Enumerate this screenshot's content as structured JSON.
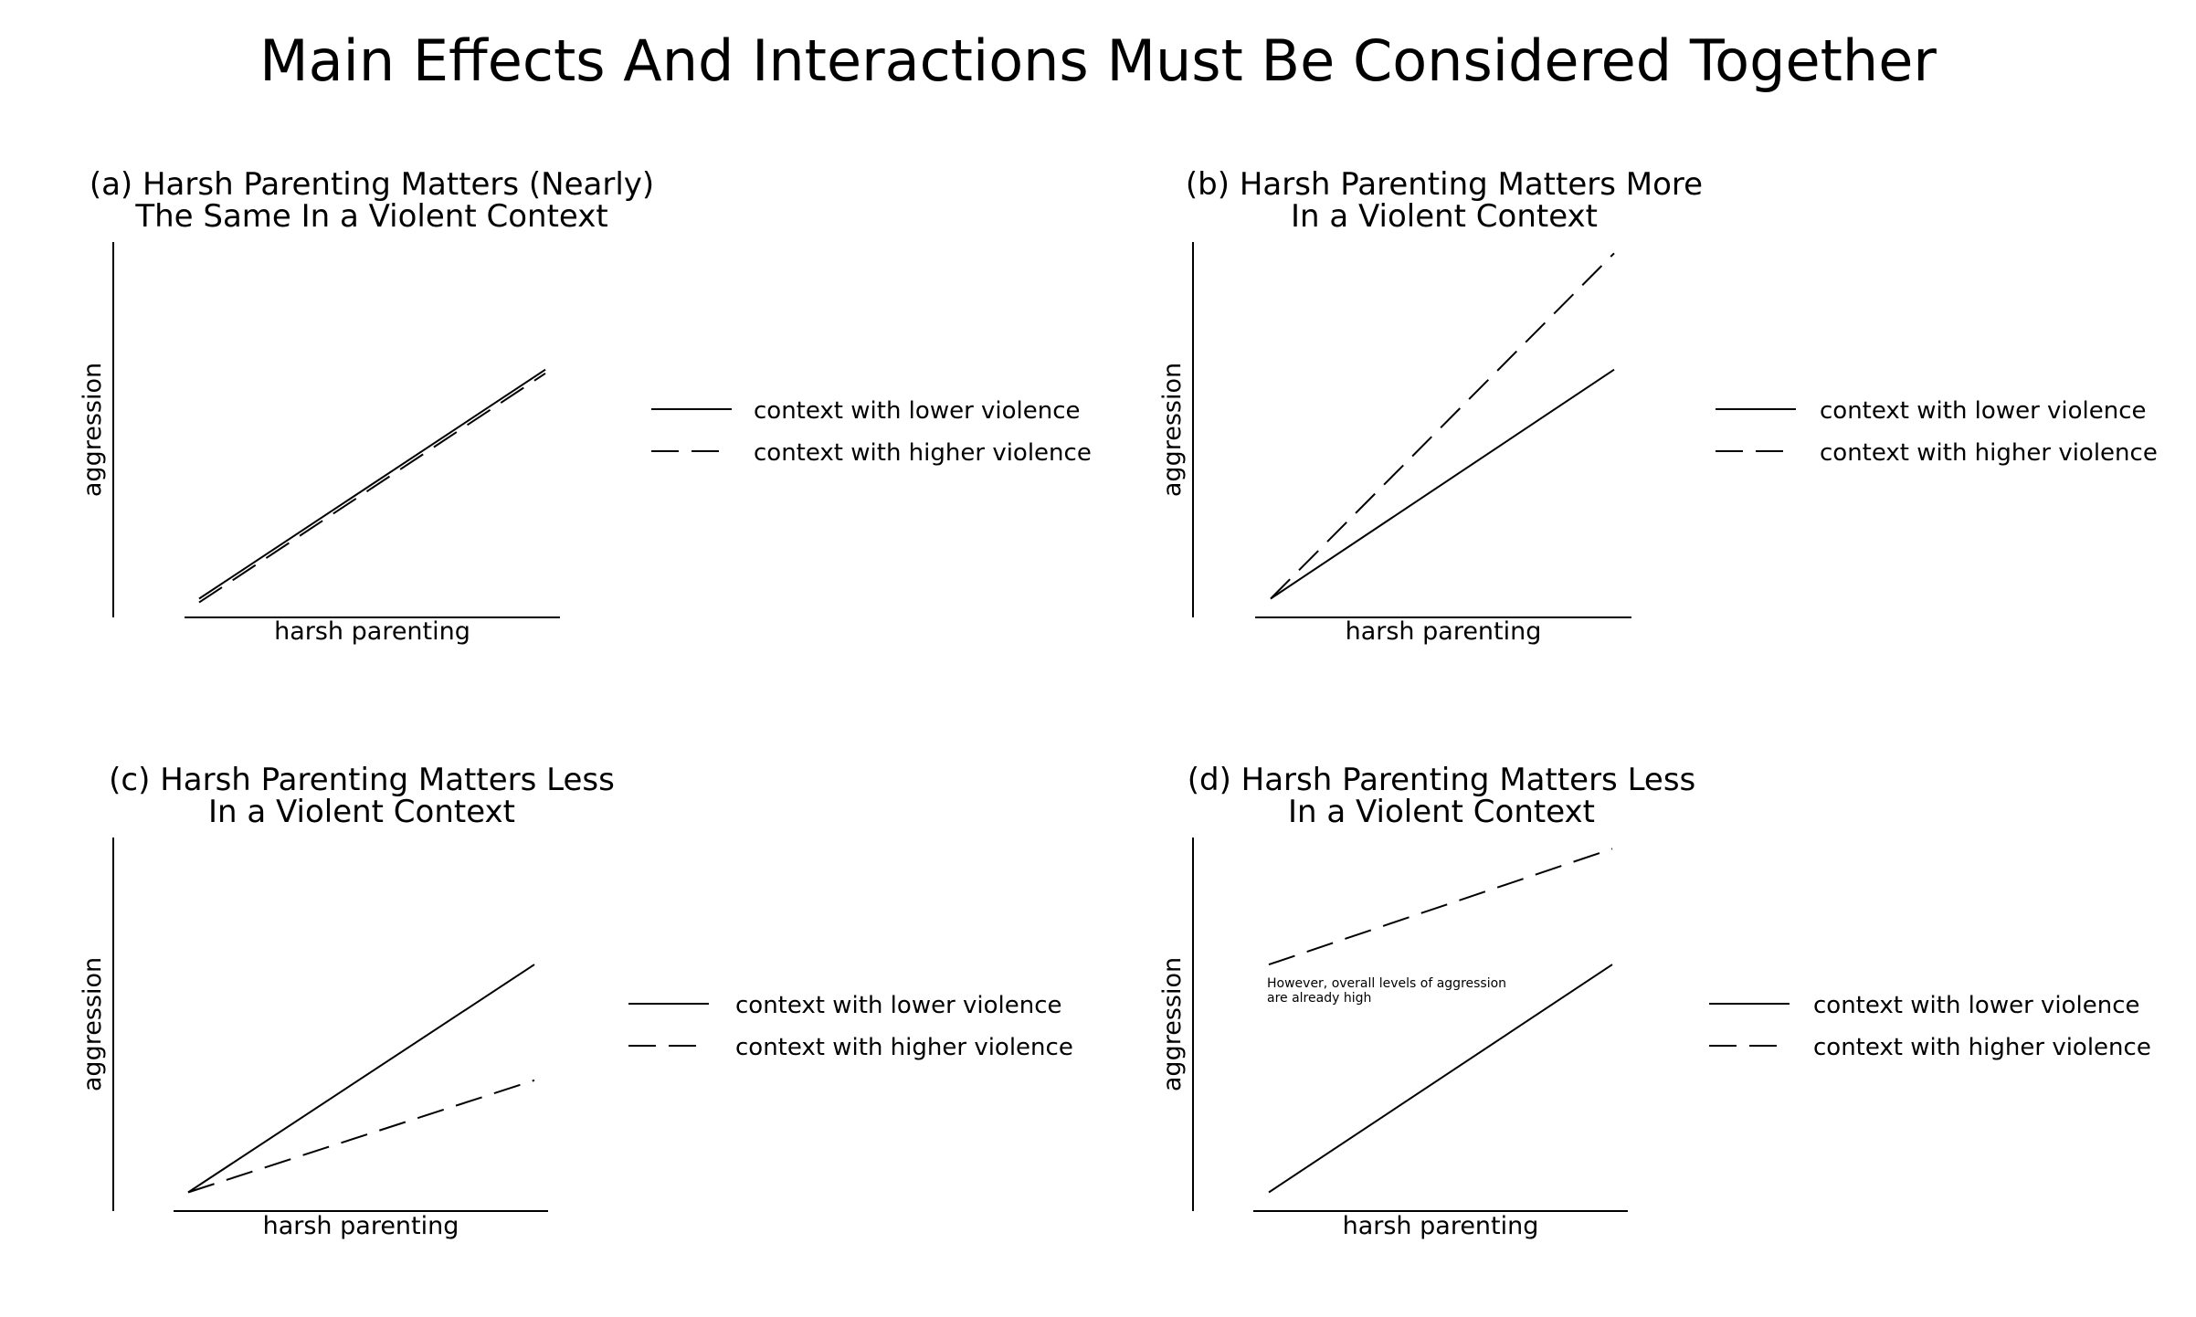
{
  "title": "Main Effects And Interactions Must Be Considered Together",
  "colors": {
    "line": "#000000",
    "background": "#ffffff"
  },
  "chart_data": [
    {
      "type": "line",
      "title": "(a) Harsh Parenting Matters (Nearly)",
      "subtitle": "The Same In a Violent Context",
      "xlabel": "harsh parenting",
      "ylabel": "aggression",
      "x": [
        0,
        1
      ],
      "xlim": [
        0,
        1
      ],
      "ylim": [
        0,
        1
      ],
      "grid": false,
      "legend": "right",
      "series": [
        {
          "name": "context with lower violence",
          "style": "solid",
          "values": [
            0.05,
            0.66
          ]
        },
        {
          "name": "context with higher violence",
          "style": "dashed",
          "values": [
            0.04,
            0.65
          ]
        }
      ]
    },
    {
      "type": "line",
      "title": "(b) Harsh Parenting Matters More",
      "subtitle": "In a Violent Context",
      "xlabel": "harsh parenting",
      "ylabel": "aggression",
      "x": [
        0,
        1
      ],
      "xlim": [
        0,
        1
      ],
      "ylim": [
        0,
        1
      ],
      "grid": false,
      "legend": "right",
      "series": [
        {
          "name": "context with lower violence",
          "style": "solid",
          "values": [
            0.05,
            0.66
          ]
        },
        {
          "name": "context with higher violence",
          "style": "dashed",
          "values": [
            0.05,
            0.97
          ]
        }
      ]
    },
    {
      "type": "line",
      "title": "(c) Harsh Parenting Matters Less",
      "subtitle": "In a Violent Context",
      "xlabel": "harsh parenting",
      "ylabel": "aggression",
      "x": [
        0,
        1
      ],
      "xlim": [
        0,
        1
      ],
      "ylim": [
        0,
        1
      ],
      "grid": false,
      "legend": "right",
      "series": [
        {
          "name": "context with lower violence",
          "style": "solid",
          "values": [
            0.05,
            0.66
          ]
        },
        {
          "name": "context with higher violence",
          "style": "dashed",
          "values": [
            0.05,
            0.35
          ]
        }
      ]
    },
    {
      "type": "line",
      "title": "(d) Harsh Parenting Matters Less",
      "subtitle": "In a Violent Context",
      "xlabel": "harsh parenting",
      "ylabel": "aggression",
      "x": [
        0,
        1
      ],
      "xlim": [
        0,
        1
      ],
      "ylim": [
        0,
        1
      ],
      "grid": false,
      "legend": "right",
      "annotation": [
        "However, overall levels of aggression",
        "are already high"
      ],
      "series": [
        {
          "name": "context with lower violence",
          "style": "solid",
          "values": [
            0.05,
            0.66
          ]
        },
        {
          "name": "context with higher violence",
          "style": "dashed",
          "values": [
            0.66,
            0.97
          ]
        }
      ]
    }
  ]
}
